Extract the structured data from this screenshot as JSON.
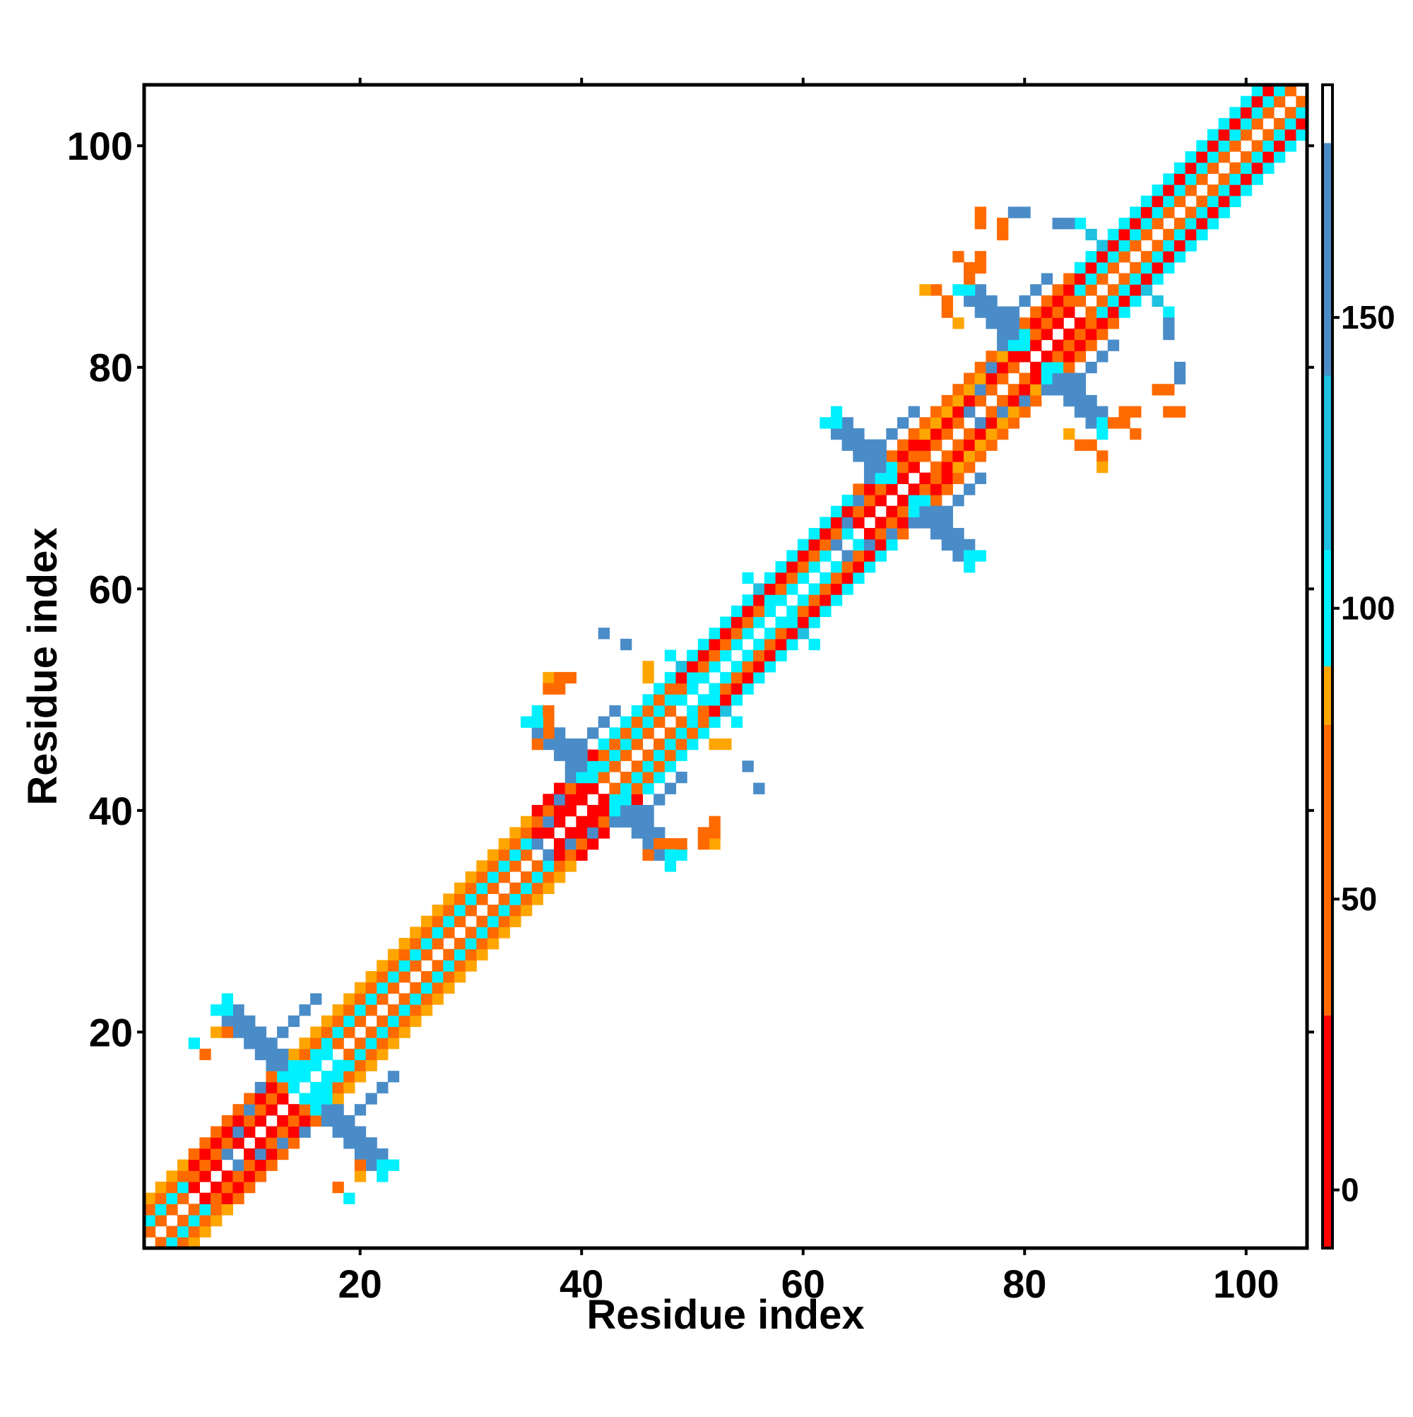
{
  "chart_data": {
    "type": "heatmap",
    "title": "",
    "xlabel": "Residue index",
    "ylabel": "Residue index",
    "xlim": [
      0.5,
      105.5
    ],
    "ylim": [
      0.5,
      105.5
    ],
    "xticks": [
      20,
      40,
      60,
      80,
      100
    ],
    "yticks": [
      20,
      40,
      60,
      80,
      100
    ],
    "xtick_labels": [
      "20",
      "40",
      "60",
      "80",
      "100"
    ],
    "ytick_labels": [
      "20",
      "40",
      "60",
      "80",
      "100"
    ],
    "grid": false,
    "colorbar": {
      "range": [
        -10,
        190
      ],
      "ticks": [
        0,
        50,
        100,
        150
      ],
      "tick_labels": [
        "0",
        "50",
        "100",
        "150"
      ],
      "bins": [
        {
          "from": -10,
          "to": 30,
          "color": "#ff0000"
        },
        {
          "from": 30,
          "to": 80,
          "color": "#ff6a00"
        },
        {
          "from": 80,
          "to": 90,
          "color": "#ffa500"
        },
        {
          "from": 90,
          "to": 110,
          "color": "#00f0ff"
        },
        {
          "from": 110,
          "to": 140,
          "color": "#1fc0e0"
        },
        {
          "from": 140,
          "to": 180,
          "color": "#4a8cc8"
        },
        {
          "from": 180,
          "to": 190,
          "color": "#ffffff"
        }
      ]
    },
    "segments": [
      {
        "start": 1,
        "end": 4,
        "type": "helix"
      },
      {
        "start": 4,
        "end": 13,
        "type": "helix",
        "values": [
          6,
          50,
          6,
          50
        ]
      },
      {
        "start": 13,
        "end": 17,
        "type": "turn"
      },
      {
        "start": 17,
        "end": 35,
        "type": "helix",
        "values": [
          50,
          100,
          50,
          82
        ]
      },
      {
        "start": 35,
        "end": 41,
        "type": "helix",
        "values": [
          6,
          6,
          50
        ]
      },
      {
        "start": 41,
        "end": 48,
        "type": "helix",
        "values": [
          50,
          100
        ]
      },
      {
        "start": 48,
        "end": 64,
        "type": "helix",
        "values": [
          100,
          50,
          6,
          100
        ]
      },
      {
        "start": 64,
        "end": 70,
        "type": "helix",
        "values": [
          6,
          50
        ]
      },
      {
        "start": 70,
        "end": 79,
        "type": "helix",
        "values": [
          50,
          6,
          82
        ]
      },
      {
        "start": 79,
        "end": 84,
        "type": "helix",
        "values": [
          6,
          50
        ]
      },
      {
        "start": 84,
        "end": 105,
        "type": "helix",
        "values": [
          50,
          100,
          6,
          100
        ]
      }
    ],
    "turns": [
      {
        "center": 14.5,
        "arm": 7
      },
      {
        "center": 42,
        "arm": 6
      },
      {
        "center": 69,
        "arm": 6
      },
      {
        "center": 81,
        "arm": 6
      },
      {
        "center": 51,
        "arm": 3
      },
      {
        "center": 58,
        "arm": 3
      },
      {
        "center": 89,
        "arm": 4
      }
    ],
    "scattered_points": [
      {
        "x": 7,
        "y": 20,
        "v": 82
      },
      {
        "x": 8,
        "y": 20,
        "v": 50
      },
      {
        "x": 18,
        "y": 6,
        "v": 50
      },
      {
        "x": 19,
        "y": 5,
        "v": 100
      },
      {
        "x": 37,
        "y": 52,
        "v": 82
      },
      {
        "x": 38,
        "y": 52,
        "v": 50
      },
      {
        "x": 39,
        "y": 52,
        "v": 50
      },
      {
        "x": 37,
        "y": 49,
        "v": 50
      },
      {
        "x": 37,
        "y": 48,
        "v": 50
      },
      {
        "x": 42,
        "y": 56,
        "v": 160
      },
      {
        "x": 44,
        "y": 55,
        "v": 160
      },
      {
        "x": 46,
        "y": 53,
        "v": 82
      },
      {
        "x": 46,
        "y": 36,
        "v": 50
      },
      {
        "x": 47,
        "y": 37,
        "v": 50
      },
      {
        "x": 51,
        "y": 38,
        "v": 50
      },
      {
        "x": 51,
        "y": 37,
        "v": 50
      },
      {
        "x": 52,
        "y": 46,
        "v": 82
      },
      {
        "x": 55,
        "y": 44,
        "v": 160
      },
      {
        "x": 56,
        "y": 42,
        "v": 160
      },
      {
        "x": 76,
        "y": 94,
        "v": 50
      },
      {
        "x": 76,
        "y": 93,
        "v": 50
      },
      {
        "x": 79,
        "y": 94,
        "v": 160
      },
      {
        "x": 83,
        "y": 93,
        "v": 160
      },
      {
        "x": 74,
        "y": 90,
        "v": 50
      },
      {
        "x": 75,
        "y": 89,
        "v": 50
      },
      {
        "x": 76,
        "y": 90,
        "v": 50
      },
      {
        "x": 72,
        "y": 87,
        "v": 50
      },
      {
        "x": 73,
        "y": 86,
        "v": 50
      },
      {
        "x": 71,
        "y": 87,
        "v": 82
      },
      {
        "x": 93,
        "y": 84,
        "v": 160
      },
      {
        "x": 94,
        "y": 80,
        "v": 160
      },
      {
        "x": 92,
        "y": 78,
        "v": 50
      },
      {
        "x": 93,
        "y": 78,
        "v": 50
      },
      {
        "x": 89,
        "y": 76,
        "v": 50
      },
      {
        "x": 88,
        "y": 75,
        "v": 50
      },
      {
        "x": 89,
        "y": 75,
        "v": 50
      },
      {
        "x": 84,
        "y": 74,
        "v": 82
      },
      {
        "x": 85,
        "y": 73,
        "v": 50
      }
    ]
  }
}
